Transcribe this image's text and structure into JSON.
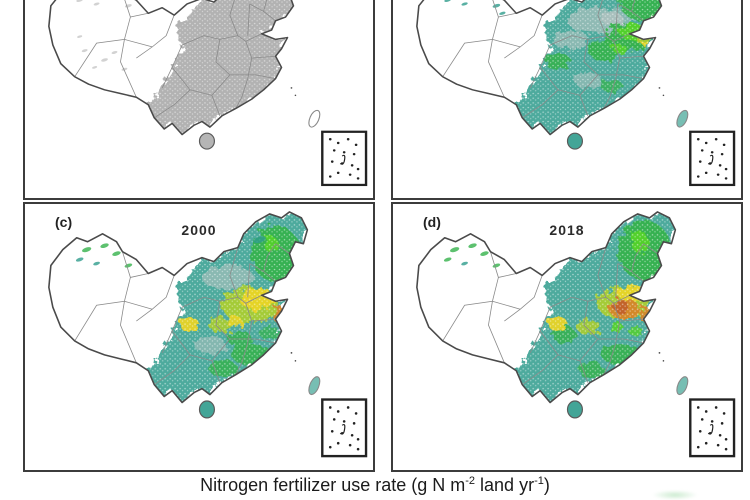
{
  "figure": {
    "caption": {
      "pre": "Nitrogen fertilizer use rate (g N m",
      "sup1": "-2",
      "mid": " land yr",
      "sup2": "-1",
      "post": ")"
    },
    "panels": [
      {
        "id": "a",
        "label": "",
        "year": ""
      },
      {
        "id": "b",
        "label": "",
        "year": ""
      },
      {
        "id": "c",
        "label": "(c)",
        "year": "2000"
      },
      {
        "id": "d",
        "label": "(d)",
        "year": "2018"
      }
    ],
    "palette": {
      "none_gray": "#aeaeae",
      "speckle_gray": "#c7c7c7",
      "teal": "#2f9c8c",
      "green": "#35b24b",
      "bright_green": "#54d22c",
      "yellow_green": "#a9cd30",
      "yellow": "#e8d426",
      "orange": "#d4862b",
      "deep_orange": "#c2622a",
      "outline": "#4a4a4a",
      "province": "#8a8a8a",
      "inset_border": "#222222"
    },
    "inset_name": "south-china-sea-inset"
  }
}
